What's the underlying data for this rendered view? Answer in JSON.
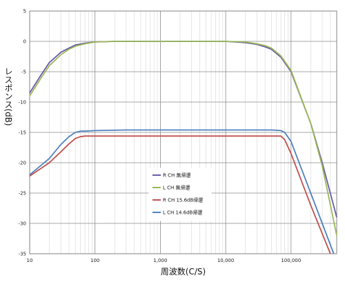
{
  "chart_data": {
    "type": "line",
    "title": "",
    "xlabel": "周波数(C/S)",
    "ylabel": "レスポンス(dB)",
    "x_scale": "log",
    "xlim": [
      10,
      500000
    ],
    "ylim": [
      -35,
      5
    ],
    "x_ticks": [
      10,
      100,
      1000,
      10000,
      100000
    ],
    "x_tick_labels": [
      "10",
      "100",
      "1,000",
      "10,000",
      "100,000"
    ],
    "y_ticks": [
      5,
      0,
      -5,
      -10,
      -15,
      -20,
      -25,
      -30,
      -35
    ],
    "y_tick_labels": [
      "5",
      "0",
      "-5",
      "-10",
      "-15",
      "-20",
      "-25",
      "-30",
      "-35"
    ],
    "grid": true,
    "legend_position": "center",
    "series": [
      {
        "name": "R CH 無帰還",
        "color": "#6a5aa8",
        "x": [
          10,
          15,
          20,
          30,
          40,
          50,
          70,
          100,
          200,
          1000,
          10000,
          20000,
          30000,
          40000,
          50000,
          70000,
          100000,
          200000,
          300000,
          500000
        ],
        "y": [
          -8.5,
          -5.5,
          -3.5,
          -1.8,
          -1.1,
          -0.6,
          -0.3,
          -0.1,
          0,
          0,
          0,
          -0.2,
          -0.5,
          -0.9,
          -1.3,
          -2.6,
          -5,
          -13.5,
          -20,
          -29
        ]
      },
      {
        "name": "L CH 無帰還",
        "color": "#9bb856",
        "x": [
          10,
          15,
          20,
          30,
          40,
          50,
          70,
          100,
          200,
          1000,
          10000,
          20000,
          30000,
          40000,
          50000,
          70000,
          100000,
          200000,
          300000,
          500000
        ],
        "y": [
          -9,
          -6,
          -4,
          -2.2,
          -1.3,
          -0.8,
          -0.4,
          -0.1,
          0,
          0,
          0,
          -0.1,
          -0.4,
          -0.7,
          -1.1,
          -2.4,
          -4.8,
          -13.5,
          -20.5,
          -32
        ]
      },
      {
        "name": "R CH 15.6dB帰還",
        "color": "#c0504d",
        "x": [
          10,
          20,
          30,
          40,
          50,
          60,
          70,
          100,
          1000,
          10000,
          50000,
          70000,
          80000,
          100000,
          200000,
          400000
        ],
        "y": [
          -22.2,
          -20,
          -18.2,
          -16.9,
          -16,
          -15.7,
          -15.6,
          -15.6,
          -15.6,
          -15.6,
          -15.6,
          -15.6,
          -16.2,
          -18.5,
          -27,
          -35
        ]
      },
      {
        "name": "L CH 14.6dB帰還",
        "color": "#4f81bd",
        "x": [
          10,
          20,
          30,
          40,
          50,
          60,
          70,
          100,
          300,
          1000,
          10000,
          50000,
          70000,
          80000,
          100000,
          200000,
          450000
        ],
        "y": [
          -22,
          -19.3,
          -17,
          -15.7,
          -15,
          -14.8,
          -14.8,
          -14.7,
          -14.6,
          -14.6,
          -14.6,
          -14.6,
          -14.7,
          -15,
          -16.5,
          -25,
          -35
        ]
      }
    ]
  }
}
